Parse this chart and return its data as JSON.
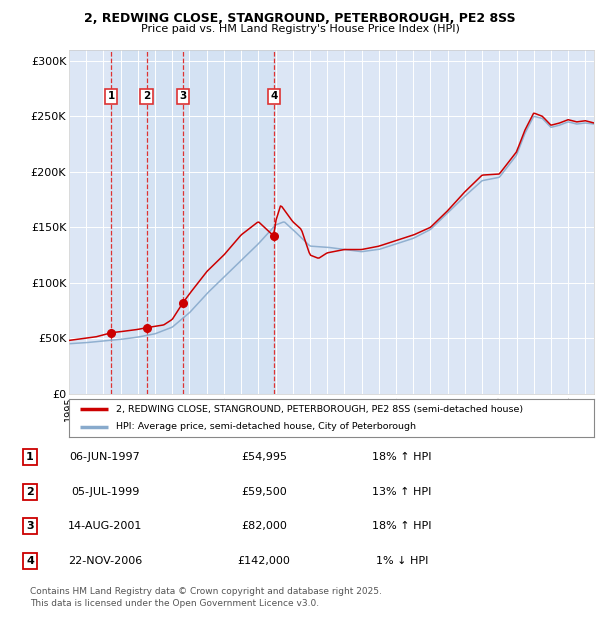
{
  "title_line1": "2, REDWING CLOSE, STANGROUND, PETERBOROUGH, PE2 8SS",
  "title_line2": "Price paid vs. HM Land Registry's House Price Index (HPI)",
  "background_color": "#ffffff",
  "plot_bg_color": "#dce6f5",
  "grid_color": "#ffffff",
  "sale_dates_year": [
    1997.44,
    1999.51,
    2001.62,
    2006.9
  ],
  "sale_prices": [
    54995,
    59500,
    82000,
    142000
  ],
  "sale_labels": [
    "1",
    "2",
    "3",
    "4"
  ],
  "legend_line1": "2, REDWING CLOSE, STANGROUND, PETERBOROUGH, PE2 8SS (semi-detached house)",
  "legend_line2": "HPI: Average price, semi-detached house, City of Peterborough",
  "table_data": [
    [
      "1",
      "06-JUN-1997",
      "£54,995",
      "18% ↑ HPI"
    ],
    [
      "2",
      "05-JUL-1999",
      "£59,500",
      "13% ↑ HPI"
    ],
    [
      "3",
      "14-AUG-2001",
      "£82,000",
      "18% ↑ HPI"
    ],
    [
      "4",
      "22-NOV-2006",
      "£142,000",
      "1% ↓ HPI"
    ]
  ],
  "footnote": "Contains HM Land Registry data © Crown copyright and database right 2025.\nThis data is licensed under the Open Government Licence v3.0.",
  "ylim": [
    0,
    310000
  ],
  "yticks": [
    0,
    50000,
    100000,
    150000,
    200000,
    250000,
    300000
  ],
  "ytick_labels": [
    "£0",
    "£50K",
    "£100K",
    "£150K",
    "£200K",
    "£250K",
    "£300K"
  ],
  "red_line_color": "#cc0000",
  "blue_line_color": "#88aacc",
  "dashed_line_color": "#dd3333",
  "xmin": 1995,
  "xmax": 2025.5
}
